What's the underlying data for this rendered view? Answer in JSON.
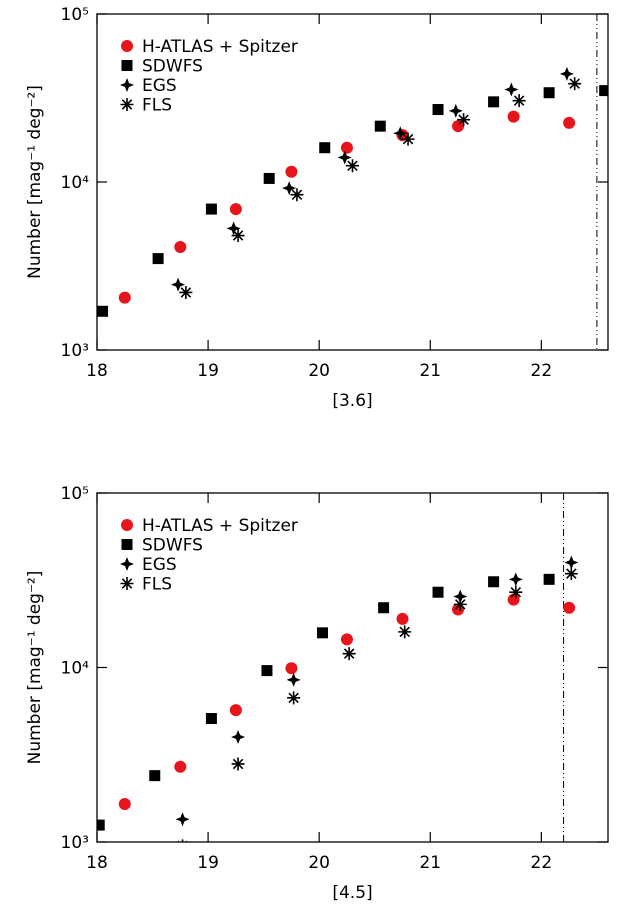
{
  "chart_data": [
    {
      "type": "scatter",
      "xlabel": "[3.6]",
      "ylabel": "Number [mag⁻¹ deg⁻²]",
      "xlim": [
        18,
        22.6
      ],
      "ylim": [
        1000,
        100000
      ],
      "log_y": true,
      "xticks": [
        18,
        19,
        20,
        21,
        22
      ],
      "yticks": [
        {
          "value": 1000,
          "label": "10³"
        },
        {
          "value": 10000,
          "label": "10⁴"
        },
        {
          "value": 100000,
          "label": "10⁵"
        }
      ],
      "vline": 22.5,
      "legend": "upper left",
      "series": [
        {
          "name": "H-ATLAS + Spitzer",
          "color": "#e8141b",
          "marker": "circle",
          "x": [
            18.25,
            18.75,
            19.25,
            19.75,
            20.25,
            20.75,
            21.25,
            21.75,
            22.25
          ],
          "values": [
            2050,
            4100,
            6900,
            11500,
            16000,
            19000,
            21500,
            24500,
            22500
          ]
        },
        {
          "name": "SDWFS",
          "color": "#000000",
          "marker": "square",
          "x": [
            18.05,
            18.55,
            19.03,
            19.55,
            20.05,
            20.55,
            21.07,
            21.57,
            22.07,
            22.57
          ],
          "values": [
            1700,
            3500,
            6900,
            10500,
            16000,
            21500,
            27000,
            30000,
            34000,
            35000
          ]
        },
        {
          "name": "EGS",
          "color": "#000000",
          "marker": "star",
          "x": [
            18.73,
            19.23,
            19.73,
            20.23,
            20.73,
            21.23,
            21.73,
            22.23
          ],
          "values": [
            2450,
            5300,
            9200,
            14000,
            19500,
            26500,
            35500,
            44000
          ]
        },
        {
          "name": "FLS",
          "color": "#000000",
          "marker": "asterisk",
          "x": [
            18.8,
            19.27,
            19.8,
            20.3,
            20.8,
            21.3,
            21.8,
            22.3
          ],
          "values": [
            2200,
            4800,
            8400,
            12500,
            18000,
            23500,
            30500,
            38500
          ]
        }
      ]
    },
    {
      "type": "scatter",
      "xlabel": "[4.5]",
      "ylabel": "Number [mag⁻¹ deg⁻²]",
      "xlim": [
        18,
        22.6
      ],
      "ylim": [
        1000,
        100000
      ],
      "log_y": true,
      "xticks": [
        18,
        19,
        20,
        21,
        22
      ],
      "yticks": [
        {
          "value": 1000,
          "label": "10³"
        },
        {
          "value": 10000,
          "label": "10⁴"
        },
        {
          "value": 100000,
          "label": "10⁵"
        }
      ],
      "vline": 22.2,
      "legend": "upper left",
      "series": [
        {
          "name": "H-ATLAS + Spitzer",
          "color": "#e8141b",
          "marker": "circle",
          "x": [
            18.25,
            18.75,
            19.25,
            19.75,
            20.25,
            20.75,
            21.25,
            21.75,
            22.25
          ],
          "values": [
            1650,
            2700,
            5700,
            9900,
            14500,
            19000,
            21500,
            24500,
            22000
          ]
        },
        {
          "name": "SDWFS",
          "color": "#000000",
          "marker": "square",
          "x": [
            18.02,
            18.52,
            19.03,
            19.53,
            20.03,
            20.58,
            21.07,
            21.57,
            22.07
          ],
          "values": [
            1250,
            2400,
            5100,
            9600,
            15800,
            22000,
            27000,
            31000,
            32000
          ]
        },
        {
          "name": "EGS",
          "color": "#000000",
          "marker": "star",
          "x": [
            18.77,
            19.27,
            19.77,
            21.27,
            21.77,
            22.27
          ],
          "values": [
            1350,
            4000,
            8500,
            25500,
            32000,
            40000
          ]
        },
        {
          "name": "FLS",
          "color": "#000000",
          "marker": "asterisk",
          "x": [
            18.77,
            19.27,
            19.77,
            20.27,
            20.77,
            21.27,
            21.77,
            22.27
          ],
          "values": [
            950,
            2800,
            6700,
            12000,
            16000,
            23000,
            27000,
            34500
          ]
        }
      ]
    }
  ]
}
